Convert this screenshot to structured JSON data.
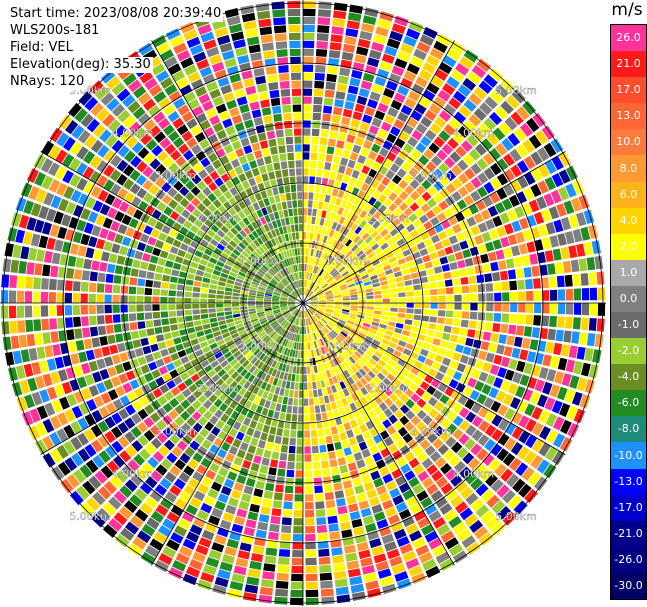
{
  "info": {
    "start_time": "Start time: 2023/08/08 20:39:40",
    "instrument": "WLS200s-181",
    "field": "Field: VEL",
    "elevation": "Elevation(deg): 35.30",
    "nrays": "NRays: 120"
  },
  "colorbar": {
    "title": "m/s",
    "levels": [
      {
        "label": "26.0",
        "color": "#ff3399"
      },
      {
        "label": "21.0",
        "color": "#ff1a1a"
      },
      {
        "label": "17.0",
        "color": "#ff4d2e"
      },
      {
        "label": "13.0",
        "color": "#ff6633"
      },
      {
        "label": "10.0",
        "color": "#ff7a3d"
      },
      {
        "label": "8.0",
        "color": "#ff9933"
      },
      {
        "label": "6.0",
        "color": "#ffb31a"
      },
      {
        "label": "4.0",
        "color": "#ffd400"
      },
      {
        "label": "2.0",
        "color": "#ffff00"
      },
      {
        "label": "1.0",
        "color": "#a9a9a9"
      },
      {
        "label": "0.0",
        "color": "#808080"
      },
      {
        "label": "-1.0",
        "color": "#6b6b6b"
      },
      {
        "label": "-2.0",
        "color": "#9acd32"
      },
      {
        "label": "-4.0",
        "color": "#6b8e23"
      },
      {
        "label": "-6.0",
        "color": "#228b22"
      },
      {
        "label": "-8.0",
        "color": "#1e8b7a"
      },
      {
        "label": "-10.0",
        "color": "#1e90ff"
      },
      {
        "label": "-13.0",
        "color": "#0000ff"
      },
      {
        "label": "-17.0",
        "color": "#0000cd"
      },
      {
        "label": "-21.0",
        "color": "#00008b"
      },
      {
        "label": "-26.0",
        "color": "#000080"
      },
      {
        "label": "-30.0",
        "color": "#000066"
      }
    ]
  },
  "range_ring_labels": [
    "1.00km",
    "2.00km",
    "3.00km",
    "4.00km",
    "5.00km"
  ],
  "palette": {
    "near_positive": [
      "#ffff00",
      "#ffff00",
      "#ffd400",
      "#ffff00",
      "#ff9933",
      "#808080"
    ],
    "near_negative": [
      "#9acd32",
      "#6b8e23",
      "#9acd32",
      "#228b22",
      "#808080",
      "#6b8e23"
    ],
    "far_noise": [
      "#ff3399",
      "#ff1a1a",
      "#ffff00",
      "#0000ff",
      "#00008b",
      "#ff9933",
      "#9acd32",
      "#808080",
      "#1e90ff",
      "#000000",
      "#ff6633",
      "#228b22",
      "#6b6b6b",
      "#ffd400"
    ]
  }
}
